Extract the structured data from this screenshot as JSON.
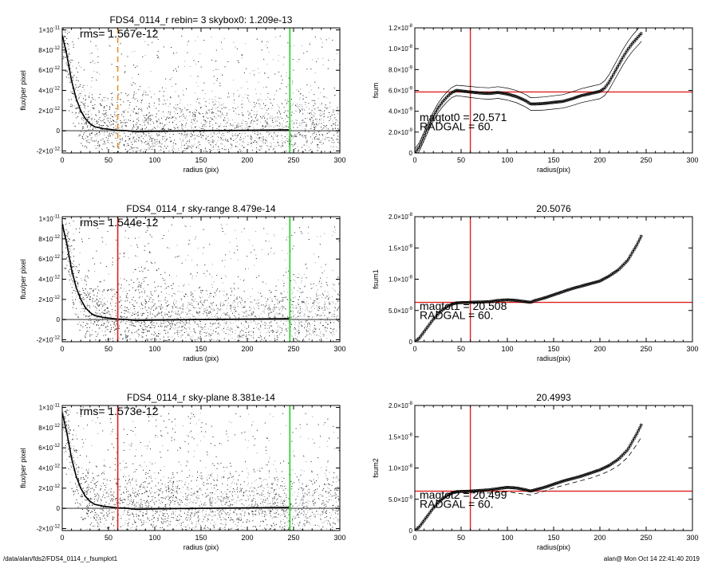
{
  "footer": {
    "path": "/data/alan/fds2/FDS4_0114_r_fsumplot1",
    "stamp": "alan@  Mon Oct 14 22:41:40 2019"
  },
  "colors": {
    "red": "#e02020",
    "green": "#22cc22",
    "orange": "#e8922a",
    "scatter_dark": "#1a1a1a",
    "scatter_light": "#9a9a9a"
  },
  "chart_data": [
    {
      "type": "scatter",
      "title": "FDS4_0114_r rebin= 3    skybox0:  1.209e-13",
      "annotation": "rms= 1.567e-12",
      "xlabel": "radius (pix)",
      "ylabel": "flux/per pixel",
      "xlim": [
        0,
        300
      ],
      "ylim": [
        -2.2e-12,
        1.02e-11
      ],
      "xticks": [
        "0",
        "50",
        "100",
        "150",
        "200",
        "250",
        "300"
      ],
      "yticks": [
        {
          "v": -2e-12,
          "m": "-2×10",
          "e": "-12"
        },
        {
          "v": 0,
          "m": "0",
          "e": ""
        },
        {
          "v": 2e-12,
          "m": "2×10",
          "e": "-12"
        },
        {
          "v": 4e-12,
          "m": "4×10",
          "e": "-12"
        },
        {
          "v": 6e-12,
          "m": "6×10",
          "e": "-12"
        },
        {
          "v": 8e-12,
          "m": "8×10",
          "e": "-12"
        },
        {
          "v": 1e-11,
          "m": "1×10",
          "e": "-11"
        }
      ],
      "profile": {
        "x": [
          0,
          5,
          10,
          15,
          20,
          25,
          30,
          35,
          40,
          45,
          50,
          55,
          60,
          70,
          80,
          100,
          150,
          200,
          245
        ],
        "y": [
          9.5e-12,
          7.5e-12,
          5e-12,
          3.2e-12,
          2e-12,
          1.2e-12,
          7e-13,
          4e-13,
          3e-13,
          2e-13,
          1.5e-13,
          1e-13,
          5e-14,
          0,
          -1e-13,
          -5e-14,
          0,
          5e-14,
          1e-13
        ]
      },
      "vlines": [
        {
          "x": 60,
          "color": "orange",
          "dash": true
        },
        {
          "x": 246,
          "color": "green",
          "dash": false
        }
      ],
      "hline": 0
    },
    {
      "type": "line",
      "title": "",
      "ylabel": "fsum",
      "xlabel": "radius(pix)",
      "xlim": [
        0,
        300
      ],
      "ylim": [
        0,
        1.2e-08
      ],
      "xticks": [
        "0",
        "50",
        "100",
        "150",
        "200",
        "250",
        "300"
      ],
      "yticks": [
        {
          "v": 0,
          "m": "0",
          "e": ""
        },
        {
          "v": 2e-09,
          "m": "2.0×10",
          "e": "-9"
        },
        {
          "v": 4e-09,
          "m": "4.0×10",
          "e": "-9"
        },
        {
          "v": 6e-09,
          "m": "6.0×10",
          "e": "-9"
        },
        {
          "v": 8e-09,
          "m": "8.0×10",
          "e": "-9"
        },
        {
          "v": 1e-08,
          "m": "1.0×10",
          "e": "-8"
        },
        {
          "v": 1.2e-08,
          "m": "1.2×10",
          "e": "-8"
        }
      ],
      "annotations": [
        "magtot0 =  20.571",
        "RADGAL =    60."
      ],
      "series": [
        {
          "x": [
            0,
            5,
            10,
            15,
            20,
            25,
            30,
            35,
            40,
            45,
            50,
            55,
            60,
            70,
            80,
            90,
            100,
            110,
            120,
            125,
            130,
            140,
            150,
            160,
            170,
            180,
            190,
            200,
            205,
            210,
            215,
            220,
            225,
            230,
            235,
            240,
            245
          ],
          "y": [
            0,
            6e-10,
            1.6e-09,
            2.6e-09,
            3.5e-09,
            4.3e-09,
            4.9e-09,
            5.4e-09,
            5.8e-09,
            6e-09,
            5.95e-09,
            5.9e-09,
            5.85e-09,
            5.75e-09,
            5.7e-09,
            5.8e-09,
            5.65e-09,
            5.4e-09,
            5e-09,
            4.7e-09,
            4.7e-09,
            4.75e-09,
            4.85e-09,
            4.95e-09,
            5.2e-09,
            5.5e-09,
            5.7e-09,
            5.9e-09,
            6.2e-09,
            6.8e-09,
            7.6e-09,
            8.4e-09,
            9.2e-09,
            9.9e-09,
            1.05e-08,
            1.1e-08,
            1.15e-08
          ]
        }
      ],
      "envelope_offset": 4e-10,
      "vline": 60,
      "hline": 5.85e-09
    },
    {
      "type": "scatter",
      "title": "FDS4_0114_r sky-range  8.479e-14",
      "annotation": "rms= 1.544e-12",
      "xlabel": "radius (pix)",
      "ylabel": "flux/per pixel",
      "xlim": [
        0,
        300
      ],
      "ylim": [
        -2.2e-12,
        1.02e-11
      ],
      "xticks": [
        "0",
        "50",
        "100",
        "150",
        "200",
        "250",
        "300"
      ],
      "yticks": [
        {
          "v": -2e-12,
          "m": "-2×10",
          "e": "-12"
        },
        {
          "v": 0,
          "m": "0",
          "e": ""
        },
        {
          "v": 2e-12,
          "m": "2×10",
          "e": "-12"
        },
        {
          "v": 4e-12,
          "m": "4×10",
          "e": "-12"
        },
        {
          "v": 6e-12,
          "m": "6×10",
          "e": "-12"
        },
        {
          "v": 8e-12,
          "m": "8×10",
          "e": "-12"
        },
        {
          "v": 1e-11,
          "m": "1×10",
          "e": "-11"
        }
      ],
      "profile": {
        "x": [
          0,
          5,
          10,
          15,
          20,
          25,
          30,
          35,
          40,
          45,
          50,
          55,
          60,
          70,
          80,
          100,
          150,
          200,
          245
        ],
        "y": [
          9.5e-12,
          7.5e-12,
          5e-12,
          3.2e-12,
          2e-12,
          1.2e-12,
          7e-13,
          4e-13,
          3e-13,
          2e-13,
          1.5e-13,
          1e-13,
          5e-14,
          0,
          -1e-13,
          -5e-14,
          0,
          5e-14,
          1e-13
        ]
      },
      "vlines": [
        {
          "x": 60,
          "color": "red",
          "dash": false
        },
        {
          "x": 246,
          "color": "green",
          "dash": false
        }
      ],
      "hline": 0
    },
    {
      "type": "line",
      "title": "20.5076",
      "ylabel": "fsum1",
      "xlabel": "radius(pix)",
      "xlim": [
        0,
        300
      ],
      "ylim": [
        0,
        2e-08
      ],
      "xticks": [
        "0",
        "50",
        "100",
        "150",
        "200",
        "250",
        "300"
      ],
      "yticks": [
        {
          "v": 0,
          "m": "0",
          "e": ""
        },
        {
          "v": 5e-09,
          "m": "5.0×10",
          "e": "-9"
        },
        {
          "v": 1e-08,
          "m": "1.0×10",
          "e": "-8"
        },
        {
          "v": 1.5e-08,
          "m": "1.5×10",
          "e": "-8"
        },
        {
          "v": 2e-08,
          "m": "2.0×10",
          "e": "-8"
        }
      ],
      "annotations": [
        "magtot1 =  20.508",
        "RADGAL =    60."
      ],
      "series": [
        {
          "x": [
            0,
            5,
            10,
            15,
            20,
            25,
            30,
            35,
            40,
            45,
            50,
            55,
            60,
            70,
            80,
            90,
            100,
            110,
            120,
            125,
            130,
            140,
            150,
            160,
            170,
            180,
            190,
            200,
            210,
            220,
            230,
            240,
            245
          ],
          "y": [
            0,
            6e-10,
            1.6e-09,
            2.6e-09,
            3.6e-09,
            4.4e-09,
            5.1e-09,
            5.6e-09,
            6e-09,
            6.2e-09,
            6.25e-09,
            6.25e-09,
            6.3e-09,
            6.35e-09,
            6.4e-09,
            6.6e-09,
            6.7e-09,
            6.6e-09,
            6.4e-09,
            6.3e-09,
            6.6e-09,
            7e-09,
            7.5e-09,
            8e-09,
            8.5e-09,
            8.9e-09,
            9.3e-09,
            9.7e-09,
            1.05e-08,
            1.15e-08,
            1.3e-08,
            1.55e-08,
            1.7e-08
          ]
        }
      ],
      "vline": 60,
      "hline": 6.3e-09
    },
    {
      "type": "scatter",
      "title": "FDS4_0114_r sky-plane  8.381e-14",
      "annotation": "rms= 1.573e-12",
      "xlabel": "radius (pix)",
      "ylabel": "flux/per pixel",
      "xlim": [
        0,
        300
      ],
      "ylim": [
        -2.2e-12,
        1.02e-11
      ],
      "xticks": [
        "0",
        "50",
        "100",
        "150",
        "200",
        "250",
        "300"
      ],
      "yticks": [
        {
          "v": -2e-12,
          "m": "-2×10",
          "e": "-12"
        },
        {
          "v": 0,
          "m": "0",
          "e": ""
        },
        {
          "v": 2e-12,
          "m": "2×10",
          "e": "-12"
        },
        {
          "v": 4e-12,
          "m": "4×10",
          "e": "-12"
        },
        {
          "v": 6e-12,
          "m": "6×10",
          "e": "-12"
        },
        {
          "v": 8e-12,
          "m": "8×10",
          "e": "-12"
        },
        {
          "v": 1e-11,
          "m": "1×10",
          "e": "-11"
        }
      ],
      "profile": {
        "x": [
          0,
          5,
          10,
          15,
          20,
          25,
          30,
          35,
          40,
          45,
          50,
          55,
          60,
          70,
          80,
          100,
          150,
          200,
          245
        ],
        "y": [
          9.5e-12,
          7.5e-12,
          5e-12,
          3.2e-12,
          2e-12,
          1.2e-12,
          7e-13,
          4e-13,
          3e-13,
          2e-13,
          1.5e-13,
          1e-13,
          5e-14,
          0,
          -1e-13,
          -5e-14,
          0,
          5e-14,
          1e-13
        ]
      },
      "vlines": [
        {
          "x": 60,
          "color": "red",
          "dash": false
        },
        {
          "x": 246,
          "color": "green",
          "dash": false
        }
      ],
      "hline": 0
    },
    {
      "type": "line",
      "title": "20.4993",
      "ylabel": "fsum2",
      "xlabel": "radius(pix)",
      "xlim": [
        0,
        300
      ],
      "ylim": [
        0,
        2e-08
      ],
      "xticks": [
        "0",
        "50",
        "100",
        "150",
        "200",
        "250",
        "300"
      ],
      "yticks": [
        {
          "v": 0,
          "m": "0",
          "e": ""
        },
        {
          "v": 5e-09,
          "m": "5.0×10",
          "e": "-9"
        },
        {
          "v": 1e-08,
          "m": "1.0×10",
          "e": "-8"
        },
        {
          "v": 1.5e-08,
          "m": "1.5×10",
          "e": "-8"
        },
        {
          "v": 2e-08,
          "m": "2.0×10",
          "e": "-8"
        }
      ],
      "annotations": [
        "magtot2 =  20.499",
        "RADGAL =    60."
      ],
      "series": [
        {
          "x": [
            0,
            5,
            10,
            15,
            20,
            25,
            30,
            35,
            40,
            45,
            50,
            55,
            60,
            70,
            80,
            90,
            100,
            110,
            120,
            125,
            130,
            140,
            150,
            160,
            170,
            180,
            190,
            200,
            210,
            220,
            230,
            240,
            245
          ],
          "y": [
            0,
            6e-10,
            1.6e-09,
            2.6e-09,
            3.6e-09,
            4.4e-09,
            5.1e-09,
            5.6e-09,
            6e-09,
            6.2e-09,
            6.25e-09,
            6.25e-09,
            6.3e-09,
            6.4e-09,
            6.5e-09,
            6.7e-09,
            6.9e-09,
            6.8e-09,
            6.5e-09,
            6.3e-09,
            6.5e-09,
            6.9e-09,
            7.4e-09,
            7.9e-09,
            8.3e-09,
            8.7e-09,
            9.2e-09,
            9.7e-09,
            1.04e-08,
            1.14e-08,
            1.29e-08,
            1.55e-08,
            1.7e-08
          ]
        },
        {
          "x": [
            0,
            5,
            10,
            15,
            20,
            25,
            30,
            35,
            40,
            45,
            50,
            55,
            60,
            70,
            80,
            90,
            100,
            110,
            120,
            125,
            130,
            140,
            150,
            160,
            170,
            180,
            190,
            200,
            210,
            220,
            230,
            240,
            245
          ],
          "y": [
            0,
            6e-10,
            1.6e-09,
            2.6e-09,
            3.6e-09,
            4.4e-09,
            5e-09,
            5.5e-09,
            5.8e-09,
            6e-09,
            6e-09,
            6e-09,
            6e-09,
            6e-09,
            6e-09,
            6.1e-09,
            6.2e-09,
            6e-09,
            5.8e-09,
            5.7e-09,
            5.9e-09,
            6.3e-09,
            6.8e-09,
            7.2e-09,
            7.6e-09,
            8e-09,
            8.4e-09,
            8.9e-09,
            9.5e-09,
            1.04e-08,
            1.17e-08,
            1.38e-08,
            1.5e-08
          ],
          "dashed": true
        }
      ],
      "vline": 60,
      "hline": 6.3e-09
    }
  ]
}
